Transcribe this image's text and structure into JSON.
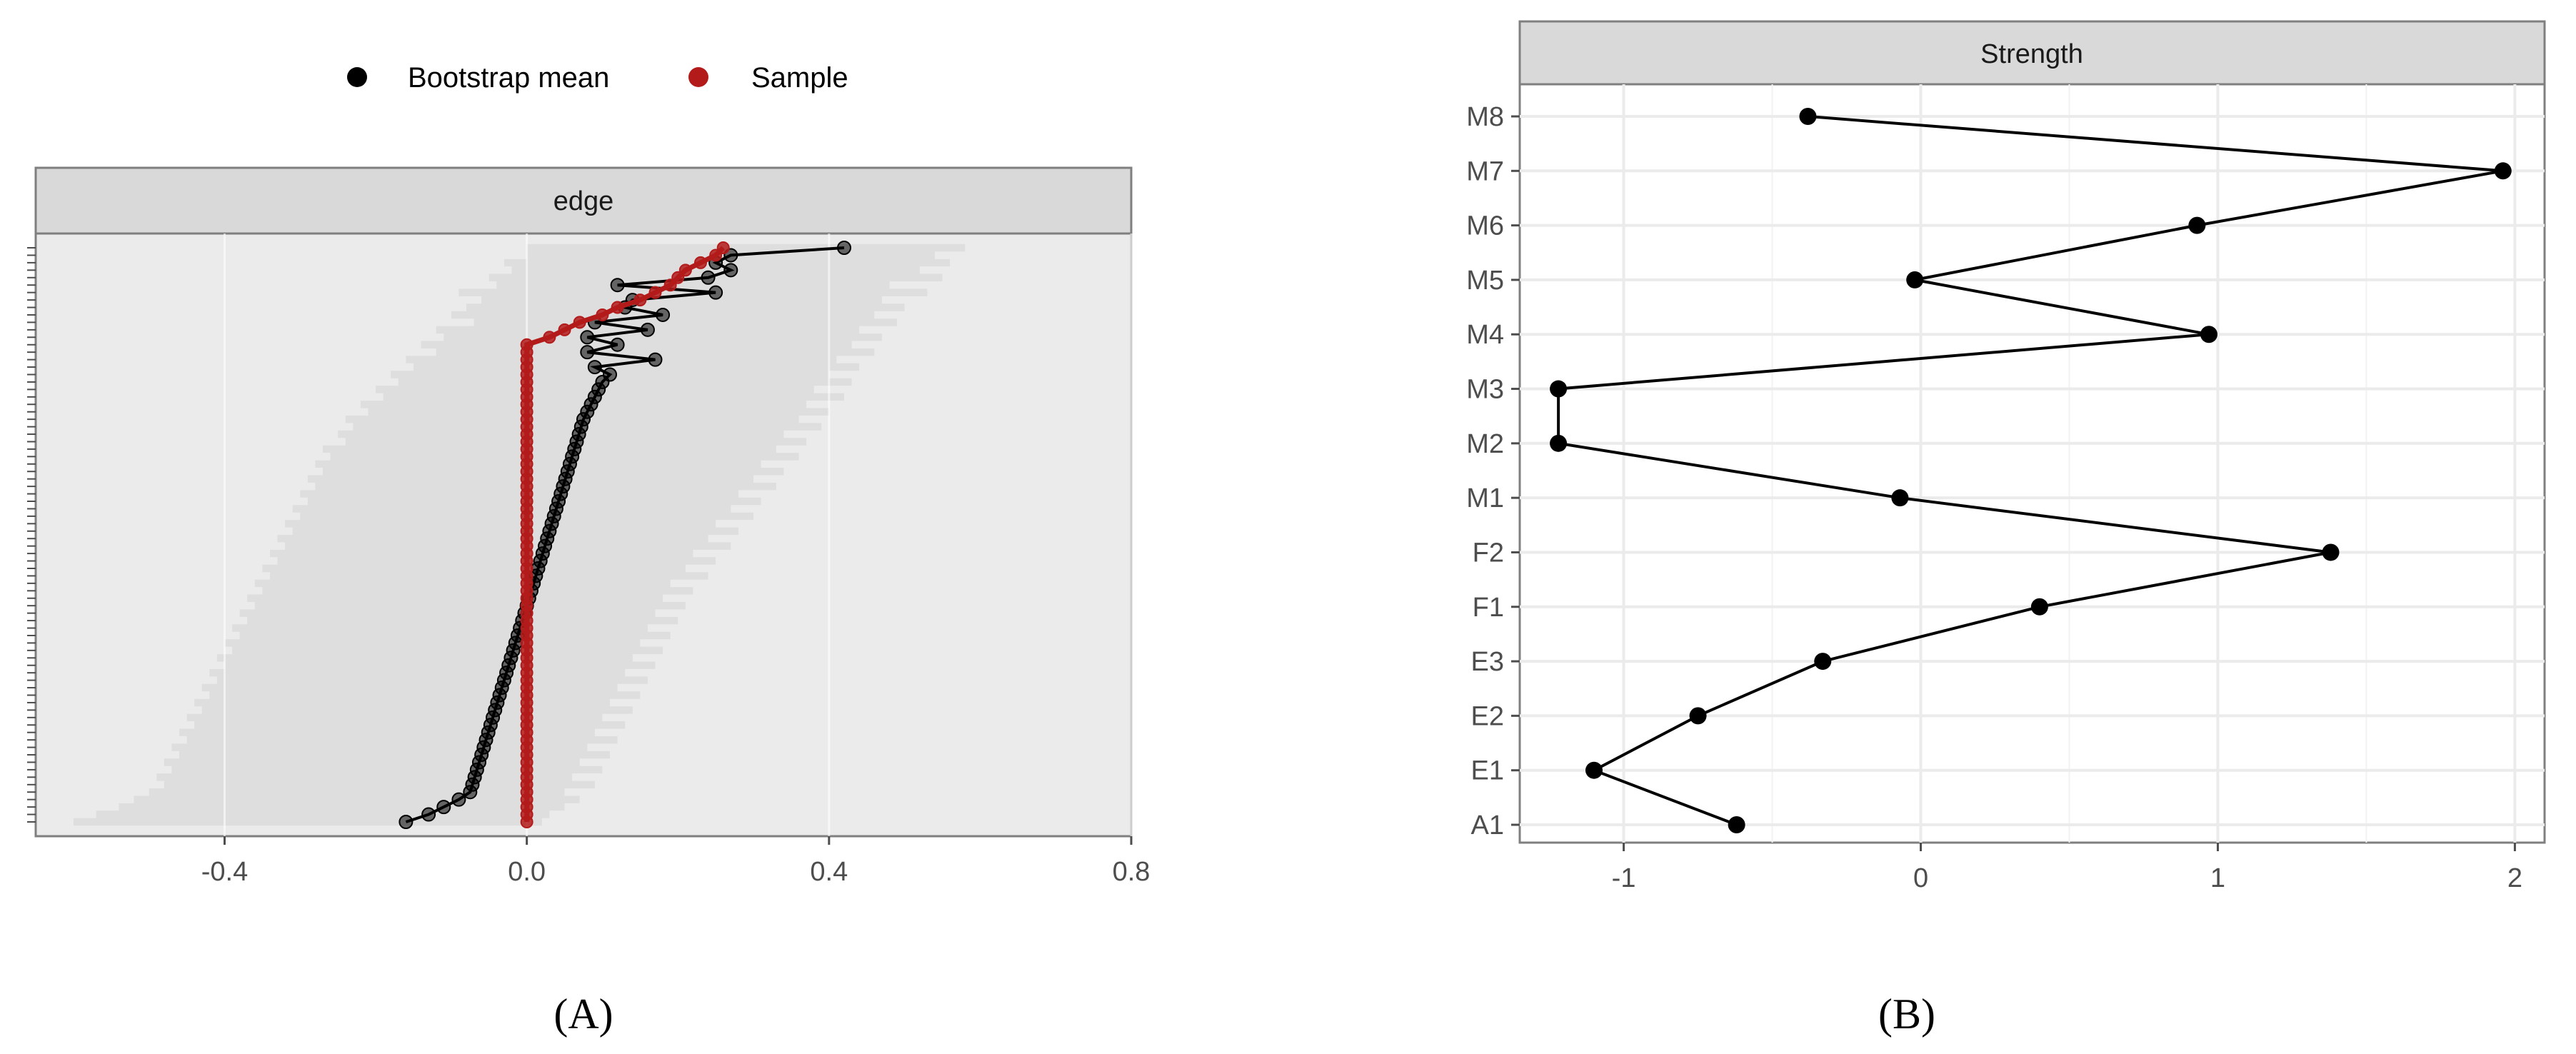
{
  "colors": {
    "bootstrap_mean": "#000000",
    "sample": "#b31b1b",
    "ci_band": "#dedede",
    "panel_bg_a": "#ebebeb",
    "strip_bg": "#d9d9d9",
    "gridline": "#ebebeb"
  },
  "chart_data": [
    {
      "panel_label": "(A)",
      "type": "line",
      "facet_label": "edge",
      "legend_position": "top",
      "legend": [
        {
          "name": "Bootstrap mean",
          "color": "#000000"
        },
        {
          "name": "Sample",
          "color": "#b31b1b"
        }
      ],
      "xlim": [
        -0.65,
        0.8
      ],
      "xticks": [
        -0.4,
        0.0,
        0.4,
        0.8
      ],
      "xtick_labels": [
        "-0.4",
        "0.0",
        "0.4",
        "0.8"
      ],
      "y_axis": "edges ordered by sample value (labels not readable)",
      "n_edges": 78,
      "series": [
        {
          "name": "Bootstrap mean",
          "x": [
            0.42,
            0.27,
            0.25,
            0.27,
            0.24,
            0.12,
            0.25,
            0.14,
            0.13,
            0.18,
            0.09,
            0.16,
            0.08,
            0.12,
            0.08,
            0.17,
            0.09,
            0.11,
            0.1,
            0.095,
            0.09,
            0.085,
            0.08,
            0.075,
            0.072,
            0.069,
            0.066,
            0.063,
            0.06,
            0.057,
            0.054,
            0.051,
            0.048,
            0.045,
            0.042,
            0.039,
            0.036,
            0.033,
            0.03,
            0.027,
            0.024,
            0.021,
            0.018,
            0.015,
            0.012,
            0.009,
            0.006,
            0.003,
            0.0,
            -0.003,
            -0.006,
            -0.009,
            -0.012,
            -0.015,
            -0.018,
            -0.021,
            -0.024,
            -0.027,
            -0.03,
            -0.033,
            -0.036,
            -0.039,
            -0.042,
            -0.045,
            -0.048,
            -0.051,
            -0.054,
            -0.057,
            -0.06,
            -0.063,
            -0.066,
            -0.069,
            -0.072,
            -0.075,
            -0.09,
            -0.11,
            -0.13,
            -0.16
          ]
        },
        {
          "name": "Sample",
          "x": [
            0.26,
            0.25,
            0.23,
            0.21,
            0.2,
            0.19,
            0.17,
            0.15,
            0.12,
            0.1,
            0.07,
            0.05,
            0.03,
            0.0,
            0.0,
            0.0,
            0.0,
            0.0,
            0.0,
            0.0,
            0.0,
            0.0,
            0.0,
            0.0,
            0.0,
            0.0,
            0.0,
            0.0,
            0.0,
            0.0,
            0.0,
            0.0,
            0.0,
            0.0,
            0.0,
            0.0,
            0.0,
            0.0,
            0.0,
            0.0,
            0.0,
            0.0,
            0.0,
            0.0,
            0.0,
            0.0,
            0.0,
            0.0,
            0.0,
            0.0,
            0.0,
            0.0,
            0.0,
            0.0,
            0.0,
            0.0,
            0.0,
            0.0,
            0.0,
            0.0,
            0.0,
            0.0,
            0.0,
            0.0,
            0.0,
            0.0,
            0.0,
            0.0,
            0.0,
            0.0,
            0.0,
            0.0,
            0.0,
            0.0,
            0.0,
            0.0,
            0.0,
            0.0
          ]
        }
      ],
      "ci_lower": [
        0.0,
        0.0,
        -0.03,
        -0.02,
        -0.05,
        -0.04,
        -0.09,
        -0.06,
        -0.08,
        -0.1,
        -0.07,
        -0.12,
        -0.11,
        -0.14,
        -0.12,
        -0.16,
        -0.15,
        -0.18,
        -0.17,
        -0.2,
        -0.19,
        -0.22,
        -0.21,
        -0.24,
        -0.23,
        -0.25,
        -0.24,
        -0.27,
        -0.26,
        -0.28,
        -0.27,
        -0.29,
        -0.28,
        -0.3,
        -0.29,
        -0.31,
        -0.3,
        -0.32,
        -0.31,
        -0.33,
        -0.32,
        -0.34,
        -0.33,
        -0.35,
        -0.34,
        -0.36,
        -0.35,
        -0.37,
        -0.36,
        -0.38,
        -0.37,
        -0.39,
        -0.38,
        -0.4,
        -0.39,
        -0.41,
        -0.4,
        -0.42,
        -0.41,
        -0.43,
        -0.42,
        -0.44,
        -0.43,
        -0.45,
        -0.44,
        -0.46,
        -0.45,
        -0.47,
        -0.46,
        -0.48,
        -0.47,
        -0.49,
        -0.48,
        -0.5,
        -0.52,
        -0.54,
        -0.57,
        -0.6
      ],
      "ci_upper": [
        0.58,
        0.54,
        0.56,
        0.52,
        0.55,
        0.48,
        0.53,
        0.47,
        0.5,
        0.46,
        0.49,
        0.44,
        0.47,
        0.43,
        0.46,
        0.41,
        0.44,
        0.4,
        0.43,
        0.38,
        0.42,
        0.37,
        0.4,
        0.36,
        0.39,
        0.34,
        0.37,
        0.33,
        0.36,
        0.31,
        0.34,
        0.3,
        0.33,
        0.28,
        0.31,
        0.27,
        0.3,
        0.25,
        0.28,
        0.24,
        0.27,
        0.22,
        0.25,
        0.21,
        0.24,
        0.19,
        0.22,
        0.18,
        0.21,
        0.17,
        0.2,
        0.16,
        0.19,
        0.15,
        0.18,
        0.14,
        0.17,
        0.13,
        0.16,
        0.12,
        0.15,
        0.11,
        0.14,
        0.1,
        0.13,
        0.09,
        0.12,
        0.08,
        0.11,
        0.07,
        0.1,
        0.06,
        0.09,
        0.05,
        0.07,
        0.05,
        0.03,
        0.02
      ]
    },
    {
      "panel_label": "(B)",
      "type": "line",
      "facet_label": "Strength",
      "categories": [
        "M8",
        "M7",
        "M6",
        "M5",
        "M4",
        "M3",
        "M2",
        "M1",
        "F2",
        "F1",
        "E3",
        "E2",
        "E1",
        "A1"
      ],
      "values": [
        -0.38,
        1.96,
        0.93,
        -0.02,
        0.97,
        -1.22,
        -1.22,
        -0.07,
        1.38,
        0.4,
        -0.33,
        -0.75,
        -1.1,
        -0.62
      ],
      "xlim": [
        -1.35,
        2.1
      ],
      "xticks": [
        -1,
        0,
        1,
        2
      ],
      "xtick_labels": [
        "-1",
        "0",
        "1",
        "2"
      ],
      "line_color": "#000000"
    }
  ]
}
